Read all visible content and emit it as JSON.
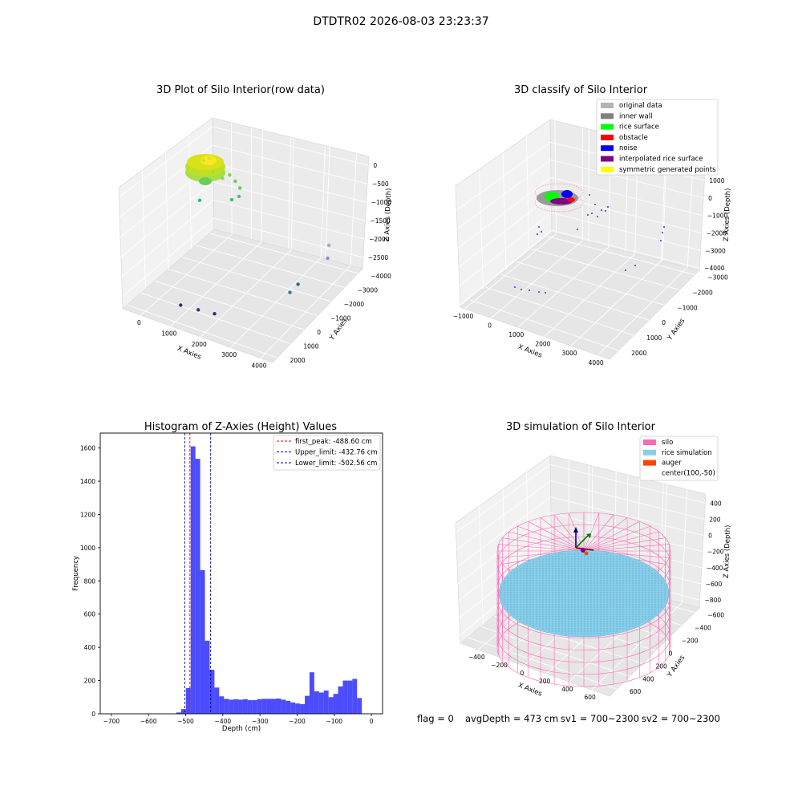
{
  "figure": {
    "suptitle": "DTDTR02 2026-08-03 23:23:37",
    "status_line": {
      "flag": "flag = 0",
      "avg_depth": "avgDepth = 473 cm",
      "sv1": "sv1 = 700~2300",
      "sv2": "sv2 = 700~2300"
    }
  },
  "chart_data": [
    {
      "type": "scatter",
      "subtype": "3d",
      "title": "3D Plot of Silo Interior(row data)",
      "xlabel": "X Axies",
      "ylabel": "Y Axies",
      "zlabel": "Z Axies (Depth)",
      "x_ticks": [
        "0",
        "1000",
        "2000",
        "3000",
        "4000"
      ],
      "y_ticks": [
        "−4000",
        "−3000",
        "−2000",
        "−1000",
        "0",
        "1000",
        "2000"
      ],
      "z_ticks": [
        "0",
        "−500",
        "−1000",
        "−1500",
        "−2000",
        "−2500"
      ],
      "colormap": "viridis",
      "grid": true,
      "points": [
        {
          "x": 150,
          "y": 200,
          "z": -300,
          "color": "#c8e020"
        },
        {
          "x": 300,
          "y": 300,
          "z": -250,
          "color": "#dde318"
        },
        {
          "x": 500,
          "y": 150,
          "z": -500,
          "color": "#a8db34"
        },
        {
          "x": 700,
          "y": 400,
          "z": -700,
          "color": "#90d743"
        },
        {
          "x": 900,
          "y": 500,
          "z": -600,
          "color": "#7ad151"
        },
        {
          "x": 1000,
          "y": 700,
          "z": -800,
          "color": "#6ccd5a"
        },
        {
          "x": 1200,
          "y": 600,
          "z": -900,
          "color": "#5ec962"
        },
        {
          "x": 1300,
          "y": 300,
          "z": -1000,
          "color": "#4ec36b"
        },
        {
          "x": 200,
          "y": -200,
          "z": -1200,
          "color": "#35b779"
        },
        {
          "x": 1100,
          "y": 200,
          "z": -1100,
          "color": "#40bd72"
        },
        {
          "x": 3800,
          "y": 1500,
          "z": -2100,
          "color": "#a0a8d0"
        },
        {
          "x": 3800,
          "y": 1400,
          "z": -2400,
          "color": "#8a8fc0"
        },
        {
          "x": 3500,
          "y": -200,
          "z": -2600,
          "color": "#31688e"
        },
        {
          "x": 3400,
          "y": -600,
          "z": -2700,
          "color": "#26828e"
        },
        {
          "x": 1000,
          "y": -3500,
          "z": -2700,
          "color": "#482173"
        },
        {
          "x": 1500,
          "y": -3300,
          "z": -2750,
          "color": "#46307e"
        },
        {
          "x": 2000,
          "y": -3200,
          "z": -2750,
          "color": "#472d7b"
        }
      ]
    },
    {
      "type": "scatter",
      "subtype": "3d",
      "title": "3D classify of Silo Interior",
      "xlabel": "X Axies",
      "ylabel": "Y Axies",
      "zlabel": "Z Axies (Depth)",
      "x_ticks": [
        "−1000",
        "0",
        "1000",
        "2000",
        "3000",
        "4000"
      ],
      "y_ticks": [
        "−3000",
        "−2000",
        "−1000",
        "0",
        "1000",
        "2000"
      ],
      "z_ticks": [
        "1000",
        "0",
        "−1000",
        "−2000",
        "−3000",
        "−4000"
      ],
      "grid": true,
      "legend_position": "top-right",
      "legend": [
        {
          "label": "original data",
          "color": "#b3b3b3"
        },
        {
          "label": "inner wall",
          "color": "#808080"
        },
        {
          "label": "rice surface",
          "color": "#00ff00"
        },
        {
          "label": "obstacle",
          "color": "#ff0000"
        },
        {
          "label": "noise",
          "color": "#0000ff"
        },
        {
          "label": "interpolated rice surface",
          "color": "#800080"
        },
        {
          "label": "symmetric generated points",
          "color": "#ffff00"
        }
      ]
    },
    {
      "type": "bar",
      "subtype": "histogram",
      "title": "Histogram of Z-Axies (Height) Values",
      "xlabel": "Depth (cm)",
      "ylabel": "Frequency",
      "xlim": [
        -730,
        30
      ],
      "ylim": [
        0,
        1690
      ],
      "x_ticks": [
        -700,
        -600,
        -500,
        -400,
        -300,
        -200,
        -100,
        0
      ],
      "y_ticks": [
        0,
        200,
        400,
        600,
        800,
        1000,
        1200,
        1400,
        1600
      ],
      "bar_color": "#0000ff",
      "bin_width": 12.8,
      "bins": [
        {
          "start": -525,
          "count": 8
        },
        {
          "start": -512.2,
          "count": 28
        },
        {
          "start": -499.4,
          "count": 155
        },
        {
          "start": -486.6,
          "count": 1610
        },
        {
          "start": -473.8,
          "count": 1535
        },
        {
          "start": -461,
          "count": 865
        },
        {
          "start": -448.2,
          "count": 440
        },
        {
          "start": -435.4,
          "count": 265
        },
        {
          "start": -422.6,
          "count": 158
        },
        {
          "start": -409.8,
          "count": 105
        },
        {
          "start": -397,
          "count": 90
        },
        {
          "start": -384.2,
          "count": 85
        },
        {
          "start": -371.4,
          "count": 88
        },
        {
          "start": -358.6,
          "count": 85
        },
        {
          "start": -345.8,
          "count": 88
        },
        {
          "start": -333,
          "count": 82
        },
        {
          "start": -320.2,
          "count": 82
        },
        {
          "start": -307.4,
          "count": 88
        },
        {
          "start": -294.6,
          "count": 90
        },
        {
          "start": -281.8,
          "count": 90
        },
        {
          "start": -269,
          "count": 90
        },
        {
          "start": -256.2,
          "count": 92
        },
        {
          "start": -243.4,
          "count": 85
        },
        {
          "start": -230.6,
          "count": 78
        },
        {
          "start": -217.8,
          "count": 68
        },
        {
          "start": -205,
          "count": 62
        },
        {
          "start": -192.2,
          "count": 58
        },
        {
          "start": -179.4,
          "count": 108
        },
        {
          "start": -166.6,
          "count": 250
        },
        {
          "start": -153.8,
          "count": 135
        },
        {
          "start": -141,
          "count": 128
        },
        {
          "start": -128.2,
          "count": 140
        },
        {
          "start": -115.4,
          "count": 100
        },
        {
          "start": -102.6,
          "count": 120
        },
        {
          "start": -89.8,
          "count": 165
        },
        {
          "start": -77,
          "count": 200
        },
        {
          "start": -64.2,
          "count": 200
        },
        {
          "start": -51.4,
          "count": 210
        },
        {
          "start": -38.6,
          "count": 95
        },
        {
          "start": -25.8,
          "count": 0
        }
      ],
      "lines": [
        {
          "label": "first_peak: -488.60 cm",
          "value": -488.6,
          "color": "#ff0000"
        },
        {
          "label": "Upper_limit: -432.76 cm",
          "value": -432.76,
          "color": "#00008b"
        },
        {
          "label": "Lower_limit: -502.56 cm",
          "value": -502.56,
          "color": "#00008b"
        }
      ],
      "legend_position": "top-right"
    },
    {
      "type": "scatter",
      "subtype": "3d-simulation",
      "title": "3D simulation of Silo Interior",
      "xlabel": "X Axies",
      "ylabel": "Y Axies",
      "zlabel": "Z Axies (Depth)",
      "x_ticks": [
        "−400",
        "−200",
        "0",
        "200",
        "400",
        "600"
      ],
      "y_ticks": [
        "−600",
        "−400",
        "−200",
        "0",
        "200",
        "400",
        "600"
      ],
      "z_ticks": [
        "400",
        "200",
        "0",
        "−200",
        "−400",
        "−600",
        "−800"
      ],
      "grid": true,
      "legend_position": "top-right",
      "legend": [
        {
          "label": "silo",
          "color": "#ff69b4"
        },
        {
          "label": "rice simulation",
          "color": "#87ceeb"
        },
        {
          "label": "auger",
          "color": "#ff4500"
        },
        {
          "label": "center(100,-50)",
          "color": ""
        }
      ]
    }
  ]
}
